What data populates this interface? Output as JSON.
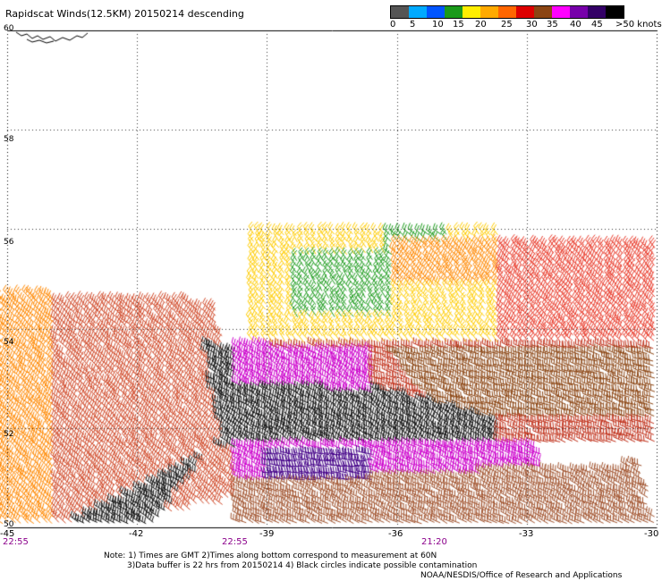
{
  "title": "Rapidscat Winds(12.5KM) 20150214 descending",
  "legend": {
    "labels": [
      "0",
      "5",
      "10",
      "15",
      "20",
      "25",
      "30",
      "35",
      "40",
      "45",
      ">50 knots"
    ],
    "colors": [
      "#555555",
      "#00aaff",
      "#0055ff",
      "#1a9a1a",
      "#ffee00",
      "#ffaa00",
      "#ff6600",
      "#dd0000",
      "#8b4513",
      "#ff00ff",
      "#7700aa",
      "#330066",
      "#000000"
    ]
  },
  "lat_labels": [
    "60",
    "58",
    "56",
    "54",
    "52",
    "50"
  ],
  "lon_labels": [
    "-45",
    "-42",
    "-39",
    "-36",
    "-33",
    "-30"
  ],
  "time_labels": [
    "22:55",
    "22:55",
    "21:20"
  ],
  "notes": {
    "line1": "Note: 1) Times are GMT 2)Times along bottom correspond to measurement at 60N",
    "line2": "3)Data buffer is 22 hrs from 20150214 4) Black circles indicate possible contamination",
    "line3": "NOAA/NESDIS/Office of Research and Applications"
  },
  "map": {
    "lat_range": [
      50,
      60
    ],
    "lon_range": [
      -45,
      -30
    ],
    "grid": "dotted",
    "wind_bands": [
      {
        "name": "swath-east-north",
        "color": "#e44",
        "speed_knots": 30
      },
      {
        "name": "swath-east-mid",
        "color": "#a0522d",
        "speed_knots": 38
      },
      {
        "name": "swath-west",
        "color": "#d04a2a",
        "speed_knots": 32
      },
      {
        "name": "swath-core",
        "color": "#000000",
        "speed_knots": 50
      },
      {
        "name": "swath-south",
        "color": "#cc00cc",
        "speed_knots": 45
      },
      {
        "name": "swath-north-weak",
        "color": "#ffcc00",
        "speed_knots": 22
      },
      {
        "name": "swath-north-green",
        "color": "#1a9a1a",
        "speed_knots": 16
      }
    ]
  }
}
